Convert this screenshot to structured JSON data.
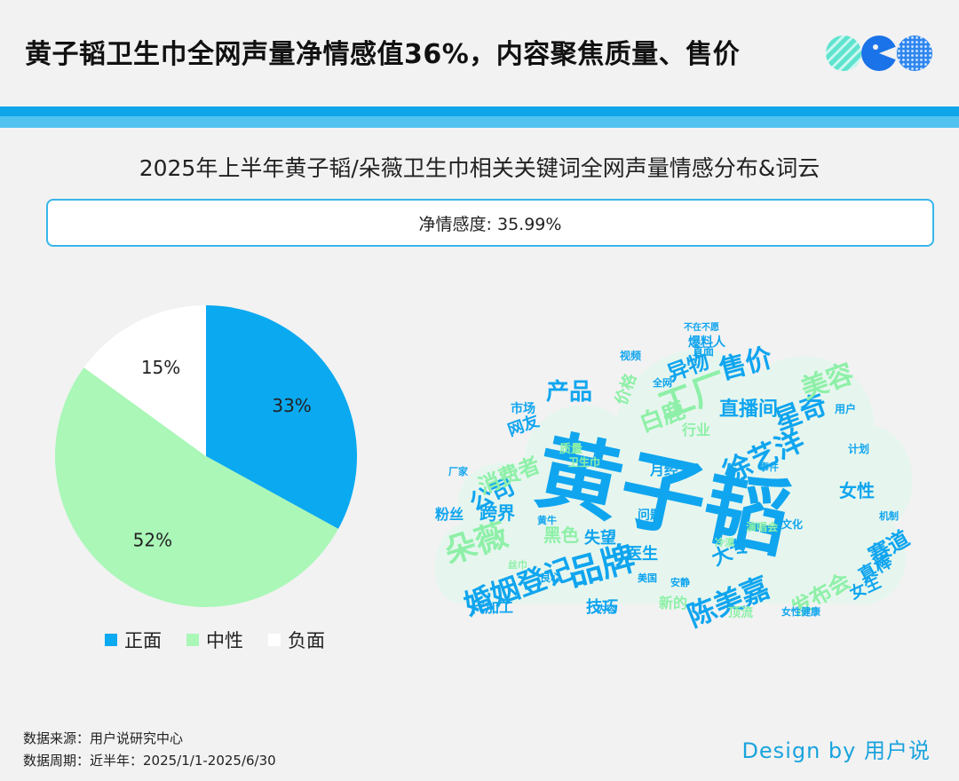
{
  "header": {
    "title": "黄子韬卫生巾全网声量净情感值36%，内容聚焦质量、售价"
  },
  "chart": {
    "title": "2025年上半年黄子韬/朵薇卫生巾相关关键词全网声量情感分布&词云",
    "net_sentiment": "净情感度: 35.99%"
  },
  "chart_data": {
    "type": "pie",
    "categories": [
      "正面",
      "中性",
      "负面"
    ],
    "values": [
      33,
      52,
      15
    ],
    "labels": [
      "33%",
      "52%",
      "15%"
    ],
    "colors": [
      "#0aa9f0",
      "#aaf7b8",
      "#ffffff"
    ],
    "legend": "bottom"
  },
  "wordcloud": {
    "big": [
      {
        "text": "黄子韬",
        "color": "#10a5ef"
      },
      {
        "text": "婚姻登记",
        "color": "#10a5ef"
      },
      {
        "text": "品牌",
        "color": "#10a5ef"
      },
      {
        "text": "朵薇",
        "color": "#10a5ef"
      },
      {
        "text": "陈美嘉",
        "color": "#10a5ef"
      },
      {
        "text": "工厂",
        "color": "#8ef0a8"
      },
      {
        "text": "售价",
        "color": "#10a5ef"
      },
      {
        "text": "异物",
        "color": "#10a5ef"
      },
      {
        "text": "徐艺洋",
        "color": "#10a5ef"
      },
      {
        "text": "星奇",
        "color": "#10a5ef"
      },
      {
        "text": "直播间",
        "color": "#10a5ef"
      },
      {
        "text": "产品",
        "color": "#10a5ef"
      },
      {
        "text": "公司",
        "color": "#10a5ef"
      },
      {
        "text": "白鹿",
        "color": "#8ef0a8"
      },
      {
        "text": "消费者",
        "color": "#8ef0a8"
      },
      {
        "text": "美容",
        "color": "#8ef0a8"
      },
      {
        "text": "赛道",
        "color": "#10a5ef"
      },
      {
        "text": "真棒",
        "color": "#10a5ef"
      },
      {
        "text": "女生",
        "color": "#10a5ef"
      },
      {
        "text": "发布会",
        "color": "#8ef0a8"
      },
      {
        "text": "跨界",
        "color": "#10a5ef"
      },
      {
        "text": "网友",
        "color": "#10a5ef"
      },
      {
        "text": "价格",
        "color": "#8ef0a8"
      },
      {
        "text": "女性",
        "color": "#10a5ef"
      },
      {
        "text": "医生",
        "color": "#10a5ef"
      },
      {
        "text": "大专",
        "color": "#10a5ef"
      },
      {
        "text": "技巧",
        "color": "#10a5ef"
      },
      {
        "text": "代加工",
        "color": "#10a5ef"
      },
      {
        "text": "失望",
        "color": "#10a5ef"
      },
      {
        "text": "问题",
        "color": "#10a5ef"
      },
      {
        "text": "粉丝",
        "color": "#10a5ef"
      },
      {
        "text": "黑色",
        "color": "#8ef0a8"
      },
      {
        "text": "月经",
        "color": "#10a5ef"
      },
      {
        "text": "新的",
        "color": "#8ef0a8"
      },
      {
        "text": "行业",
        "color": "#8ef0a8"
      },
      {
        "text": "市场",
        "color": "#10a5ef"
      },
      {
        "text": "用户",
        "color": "#10a5ef"
      },
      {
        "text": "计划",
        "color": "#10a5ef"
      },
      {
        "text": "视频",
        "color": "#10a5ef"
      },
      {
        "text": "全网",
        "color": "#10a5ef"
      },
      {
        "text": "文化",
        "color": "#10a5ef"
      },
      {
        "text": "内容",
        "color": "#10a5ef"
      },
      {
        "text": "女性健康",
        "color": "#10a5ef"
      },
      {
        "text": "爆料人",
        "color": "#10a5ef"
      },
      {
        "text": "演唱会",
        "color": "#8ef0a8"
      },
      {
        "text": "良心",
        "color": "#10a5ef"
      },
      {
        "text": "顶流",
        "color": "#8ef0a8"
      },
      {
        "text": "质量",
        "color": "#8ef0a8"
      },
      {
        "text": "卫生巾",
        "color": "#8ef0a8"
      },
      {
        "text": "厂家",
        "color": "#10a5ef"
      },
      {
        "text": "事件",
        "color": "#10a5ef"
      },
      {
        "text": "黄牛",
        "color": "#10a5ef"
      },
      {
        "text": "美国",
        "color": "#10a5ef"
      },
      {
        "text": "丝巾",
        "color": "#8ef0a8"
      },
      {
        "text": "安静",
        "color": "#10a5ef"
      },
      {
        "text": "机制",
        "color": "#10a5ef"
      },
      {
        "text": "不在不愿",
        "color": "#10a5ef"
      },
      {
        "text": "直面",
        "color": "#10a5ef"
      },
      {
        "text": "冷漠",
        "color": "#8ef0a8"
      }
    ]
  },
  "footer": {
    "source": "数据来源：用户说研究中心",
    "period": "数据周期：近半年：2025/1/1-2025/6/30",
    "design": "Design by 用户说"
  },
  "logos": {
    "icons": [
      "striped-circle-icon",
      "pacman-icon",
      "dotted-circle-icon"
    ]
  }
}
